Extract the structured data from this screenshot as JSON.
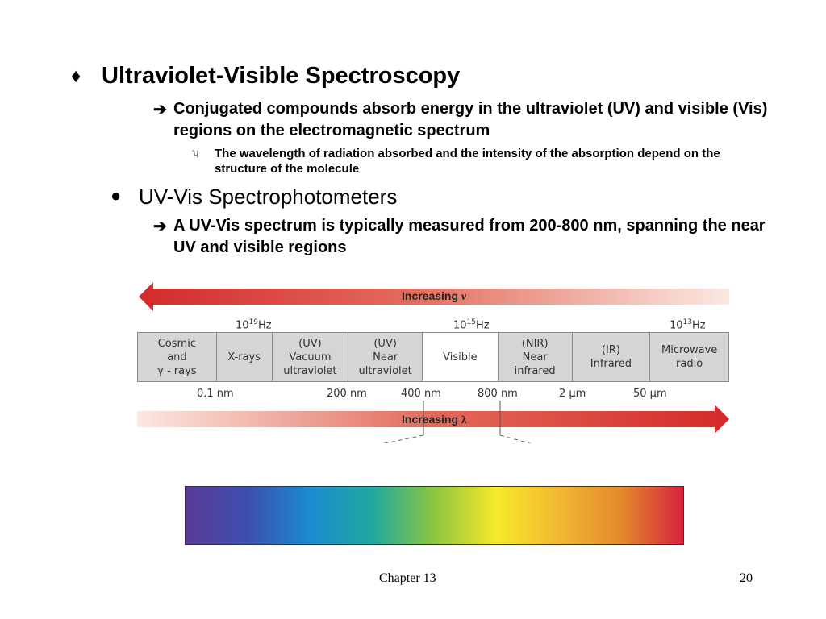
{
  "section1": {
    "bullet": "♦",
    "title": "Ultraviolet-Visible Spectroscopy",
    "arrow": "➔",
    "point": "Conjugated compounds absorb energy in the ultraviolet (UV) and visible (Vis) regions on the electromagnetic spectrum",
    "sub_bullet": "ʮ",
    "subpoint": "The wavelength of radiation absorbed and the intensity of the absorption depend on the structure of the molecule"
  },
  "section2": {
    "bullet": "●",
    "title": "UV-Vis Spectrophotometers",
    "arrow": "➔",
    "point": "A UV-Vis spectrum is typically measured from 200-800 nm, spanning the near UV and visible regions"
  },
  "diagram": {
    "top_arrow_label": "Increasing ",
    "top_arrow_symbol": "ν",
    "bottom_arrow_label": "Increasing ",
    "bottom_arrow_symbol": "λ",
    "frequencies": [
      {
        "base": "10",
        "exp": "19",
        "unit": "Hz"
      },
      {
        "base": "10",
        "exp": "15",
        "unit": "Hz"
      },
      {
        "base": "10",
        "exp": "13",
        "unit": "Hz"
      }
    ],
    "regions": [
      "Cosmic\nand\nγ - rays",
      "X-rays",
      "(UV)\nVacuum\nultraviolet",
      "(UV)\nNear\nultraviolet",
      "Visible",
      "(NIR)\nNear\ninfrared",
      "(IR)\nInfrared",
      "Microwave\nradio"
    ],
    "wavelengths": [
      "0.1 nm",
      "200 nm",
      "400 nm",
      "800 nm",
      "2 μm",
      "50 μm"
    ],
    "colors": {
      "arrow_red": "#d42a2a",
      "table_gray": "#d5d5d5",
      "spectrum": [
        "#5b3a96",
        "#3c4fb0",
        "#1b8bd0",
        "#20a8a0",
        "#8cc63f",
        "#f7e92a",
        "#f2b833",
        "#e38a2c",
        "#d8223f"
      ]
    }
  },
  "footer": {
    "chapter": "Chapter 13",
    "page": "20"
  }
}
